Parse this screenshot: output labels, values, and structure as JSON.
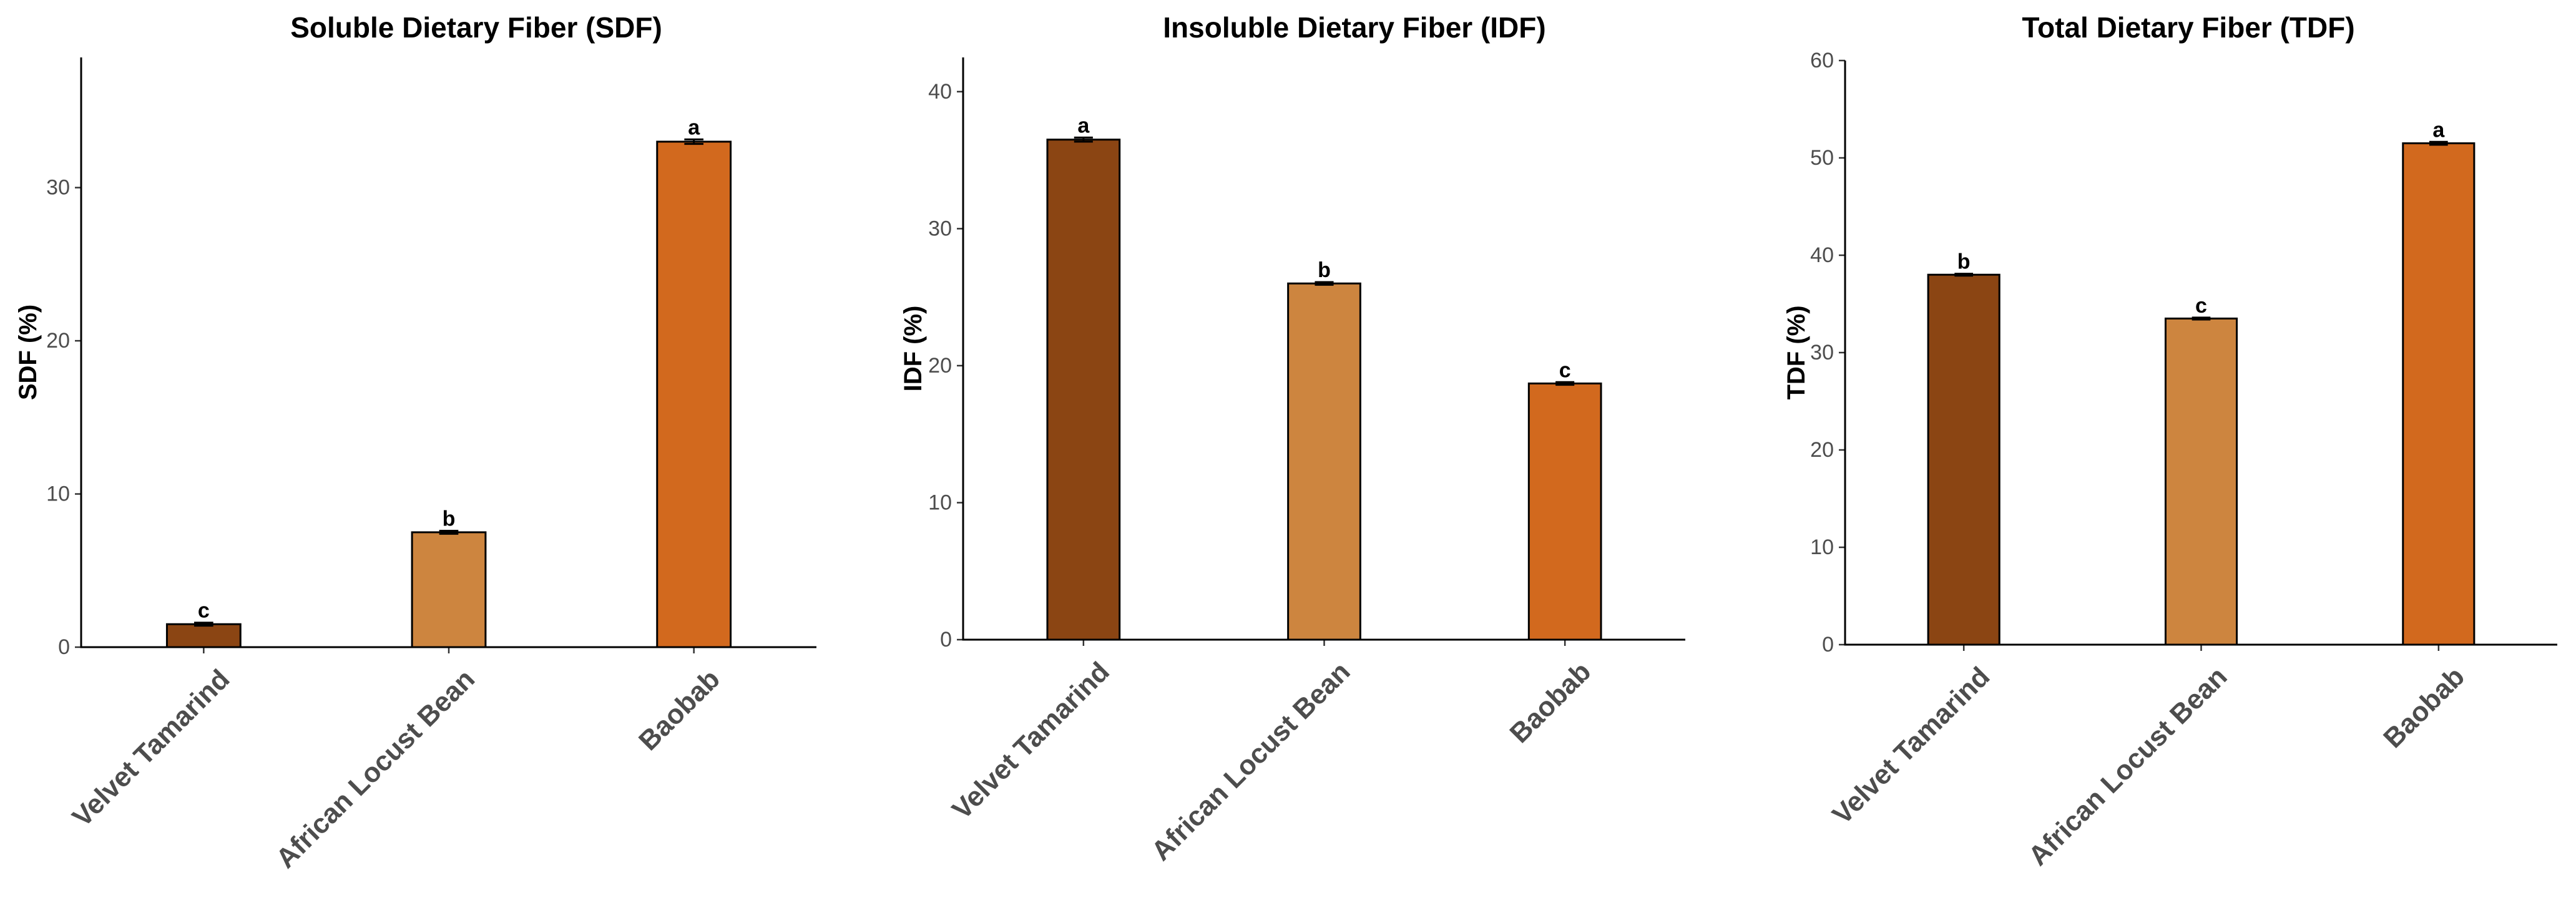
{
  "chart_data": [
    {
      "type": "bar",
      "title": "Soluble Dietary Fiber (SDF)",
      "xlabel": "",
      "ylabel": "SDF (%)",
      "ylim": [
        0,
        38.5
      ],
      "yticks": [
        0,
        10,
        20,
        30
      ],
      "categories": [
        "Velvet Tamarind",
        "African Locust Bean",
        "Baobab"
      ],
      "values": [
        1.5,
        7.5,
        33.0
      ],
      "errors": [
        0.1,
        0.1,
        0.15
      ],
      "labels": [
        "c",
        "b",
        "a"
      ],
      "colors": [
        "#8B4513",
        "#CD853F",
        "#D2691E"
      ]
    },
    {
      "type": "bar",
      "title": "Insoluble Dietary Fiber (IDF)",
      "xlabel": "",
      "ylabel": "IDF (%)",
      "ylim": [
        0,
        42.5
      ],
      "yticks": [
        0,
        10,
        20,
        30,
        40
      ],
      "categories": [
        "Velvet Tamarind",
        "African Locust Bean",
        "Baobab"
      ],
      "values": [
        36.5,
        26.0,
        18.7
      ],
      "errors": [
        0.15,
        0.1,
        0.1
      ],
      "labels": [
        "a",
        "b",
        "c"
      ],
      "colors": [
        "#8B4513",
        "#CD853F",
        "#D2691E"
      ]
    },
    {
      "type": "bar",
      "title": "Total Dietary Fiber (TDF)",
      "xlabel": "",
      "ylabel": "TDF (%)",
      "ylim": [
        0,
        60
      ],
      "yticks": [
        0,
        10,
        20,
        30,
        40,
        50,
        60
      ],
      "categories": [
        "Velvet Tamarind",
        "African Locust Bean",
        "Baobab"
      ],
      "values": [
        38.0,
        33.5,
        51.5
      ],
      "errors": [
        0.1,
        0.1,
        0.15
      ],
      "labels": [
        "b",
        "c",
        "a"
      ],
      "colors": [
        "#8B4513",
        "#CD853F",
        "#D2691E"
      ]
    }
  ]
}
